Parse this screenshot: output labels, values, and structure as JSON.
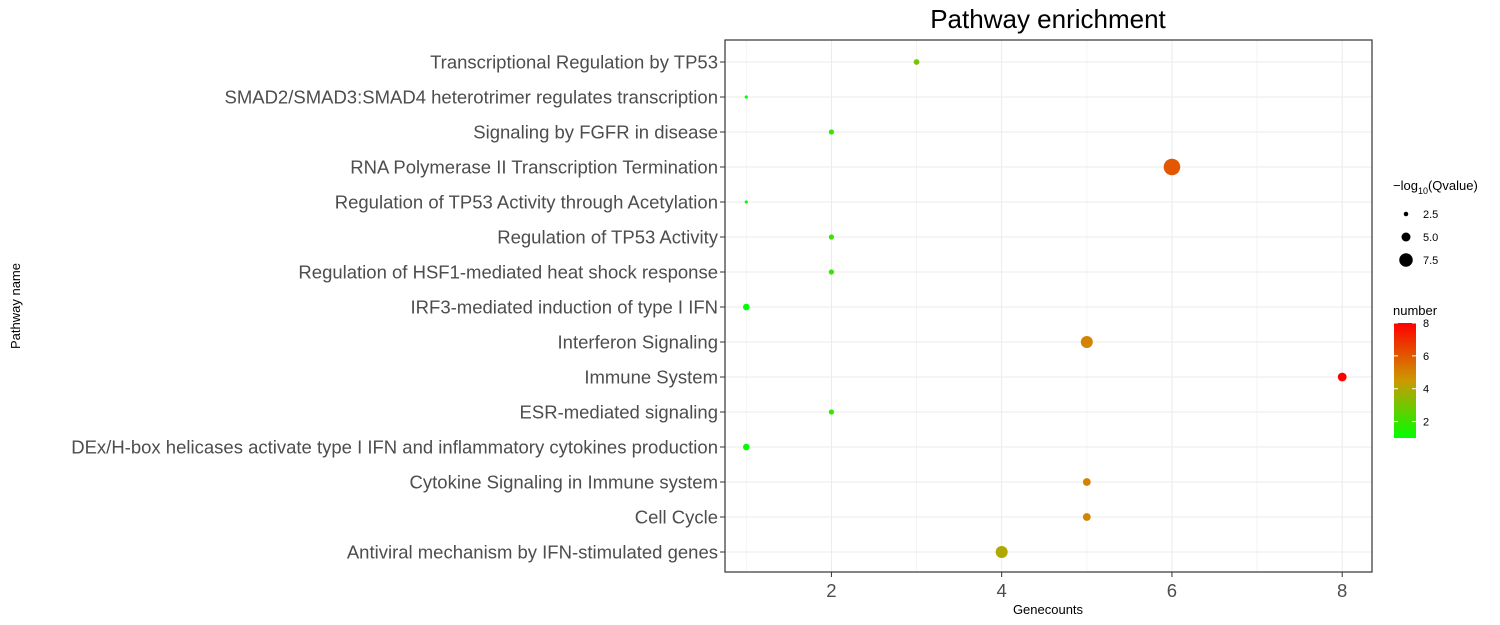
{
  "chart_data": {
    "type": "scatter",
    "title": "Pathway enrichment",
    "xlabel": "Genecounts",
    "ylabel": "Pathway name",
    "xlim": [
      0.75,
      8.35
    ],
    "xticks": [
      2,
      4,
      6,
      8
    ],
    "grid": true,
    "legend_placement": "right",
    "categories": [
      "Transcriptional Regulation by TP53",
      "SMAD2/SMAD3:SMAD4 heterotrimer regulates transcription",
      "Signaling by FGFR in disease",
      "RNA Polymerase II Transcription Termination",
      "Regulation of TP53 Activity through Acetylation",
      "Regulation of TP53 Activity",
      "Regulation of HSF1-mediated heat shock response",
      "IRF3-mediated induction of type I IFN",
      "Interferon Signaling",
      "Immune System",
      "ESR-mediated signaling",
      "DEx/H-box helicases activate type I IFN and inflammatory cytokines production",
      "Cytokine Signaling in Immune system",
      "Cell Cycle",
      "Antiviral mechanism by IFN-stimulated genes"
    ],
    "points": [
      {
        "pathway": "Transcriptional Regulation by TP53",
        "genecounts": 3,
        "neg_log10_qvalue": 2.9,
        "number": 3
      },
      {
        "pathway": "SMAD2/SMAD3:SMAD4 heterotrimer regulates transcription",
        "genecounts": 1,
        "neg_log10_qvalue": 0.9,
        "number": 1
      },
      {
        "pathway": "Signaling by FGFR in disease",
        "genecounts": 2,
        "neg_log10_qvalue": 2.6,
        "number": 2
      },
      {
        "pathway": "RNA Polymerase II Transcription Termination",
        "genecounts": 6,
        "neg_log10_qvalue": 8.3,
        "number": 6
      },
      {
        "pathway": "Regulation of TP53 Activity through Acetylation",
        "genecounts": 1,
        "neg_log10_qvalue": 0.9,
        "number": 1
      },
      {
        "pathway": "Regulation of TP53 Activity",
        "genecounts": 2,
        "neg_log10_qvalue": 2.6,
        "number": 2
      },
      {
        "pathway": "Regulation of HSF1-mediated heat shock response",
        "genecounts": 2,
        "neg_log10_qvalue": 2.6,
        "number": 2
      },
      {
        "pathway": "IRF3-mediated induction of type I IFN",
        "genecounts": 1,
        "neg_log10_qvalue": 3.3,
        "number": 1
      },
      {
        "pathway": "Interferon Signaling",
        "genecounts": 5,
        "neg_log10_qvalue": 6.0,
        "number": 5
      },
      {
        "pathway": "Immune System",
        "genecounts": 8,
        "neg_log10_qvalue": 4.4,
        "number": 8
      },
      {
        "pathway": "ESR-mediated signaling",
        "genecounts": 2,
        "neg_log10_qvalue": 2.6,
        "number": 2
      },
      {
        "pathway": "DEx/H-box helicases activate type I IFN and inflammatory cytokines production",
        "genecounts": 1,
        "neg_log10_qvalue": 3.3,
        "number": 1
      },
      {
        "pathway": "Cytokine Signaling in Immune system",
        "genecounts": 5,
        "neg_log10_qvalue": 3.9,
        "number": 5
      },
      {
        "pathway": "Cell Cycle",
        "genecounts": 5,
        "neg_log10_qvalue": 3.9,
        "number": 5
      },
      {
        "pathway": "Antiviral mechanism by IFN-stimulated genes",
        "genecounts": 4,
        "neg_log10_qvalue": 6.0,
        "number": 4
      }
    ],
    "size_legend": {
      "title_prefix": "−log",
      "title_subscript": "10",
      "title_suffix": "(Qvalue)",
      "values": [
        2.5,
        5.0,
        7.5
      ],
      "labels": [
        "2.5",
        "5.0",
        "7.5"
      ]
    },
    "color_legend": {
      "title": "number",
      "range": [
        1,
        8
      ],
      "ticks": [
        2,
        4,
        6,
        8
      ],
      "labels": [
        "2",
        "4",
        "6",
        "8"
      ],
      "low_color": "#00ff00",
      "mid_color": "#cc9900",
      "high_color": "#ff0000"
    },
    "colors": {
      "panel_border": "#333333",
      "gridline": "#ebebeb",
      "tick_text": "#4d4d4d"
    }
  }
}
